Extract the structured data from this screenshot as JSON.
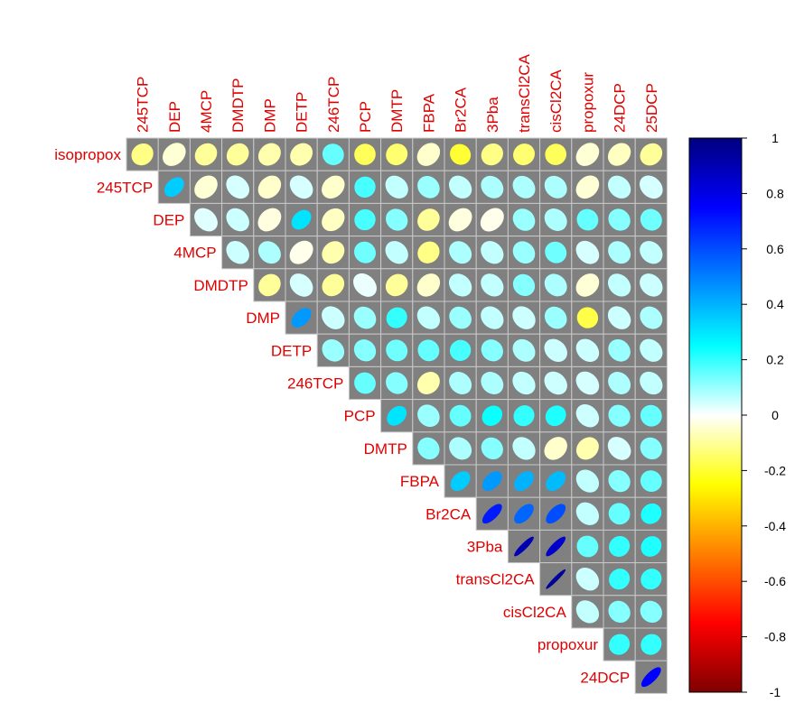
{
  "chart_data": {
    "type": "heatmap",
    "subtype": "correlation-matrix-upper",
    "shape": "ellipse",
    "background_color": "#808080",
    "row_variables": [
      "isopropox",
      "245TCP",
      "DEP",
      "4MCP",
      "DMDTP",
      "DMP",
      "DETP",
      "246TCP",
      "PCP",
      "DMTP",
      "FBPA",
      "Br2CA",
      "3Pba",
      "transCl2CA",
      "cisCl2CA",
      "propoxur",
      "24DCP"
    ],
    "column_variables": [
      "245TCP",
      "DEP",
      "4MCP",
      "DMDTP",
      "DMP",
      "DETP",
      "246TCP",
      "PCP",
      "DMTP",
      "FBPA",
      "Br2CA",
      "3Pba",
      "transCl2CA",
      "cisCl2CA",
      "propoxur",
      "24DCP",
      "25DCP"
    ],
    "values": [
      [
        -0.12,
        -0.04,
        -0.1,
        -0.1,
        -0.08,
        -0.08,
        0.15,
        -0.16,
        -0.14,
        -0.05,
        -0.2,
        -0.12,
        -0.14,
        -0.16,
        -0.04,
        -0.06,
        -0.1
      ],
      [
        0.35,
        -0.04,
        0.04,
        -0.05,
        0.04,
        -0.05,
        0.18,
        0.06,
        0.1,
        0.06,
        0.08,
        0.08,
        0.08,
        -0.04,
        0.06,
        0.04
      ],
      [
        0.03,
        0.05,
        -0.03,
        0.3,
        -0.06,
        0.18,
        0.12,
        -0.1,
        -0.03,
        -0.02,
        0.1,
        0.08,
        0.15,
        0.12,
        0.14
      ],
      [
        0.05,
        0.08,
        -0.02,
        -0.08,
        0.14,
        0.06,
        -0.12,
        0.08,
        0.06,
        0.1,
        0.14,
        0.04,
        0.08,
        0.06
      ],
      [
        -0.1,
        0.04,
        -0.1,
        0.02,
        -0.1,
        -0.05,
        0.06,
        0.06,
        0.12,
        0.08,
        -0.04,
        0.06,
        0.05
      ],
      [
        0.45,
        0.05,
        0.1,
        0.2,
        0.06,
        0.1,
        0.06,
        0.05,
        0.1,
        -0.18,
        0.05,
        0.08
      ],
      [
        0.1,
        0.12,
        0.14,
        0.15,
        0.18,
        0.12,
        0.08,
        0.05,
        0.05,
        0.1,
        0.06
      ],
      [
        0.15,
        0.12,
        -0.08,
        0.08,
        0.08,
        0.06,
        0.05,
        0.04,
        0.08,
        0.06
      ],
      [
        0.3,
        0.1,
        0.15,
        0.24,
        0.2,
        0.22,
        0.05,
        0.12,
        0.15
      ],
      [
        0.12,
        0.08,
        0.12,
        0.06,
        -0.05,
        -0.08,
        0.04,
        0.12
      ],
      [
        0.35,
        0.45,
        0.4,
        0.38,
        0.06,
        0.12,
        0.15
      ],
      [
        0.7,
        0.55,
        0.6,
        0.06,
        0.15,
        0.22
      ],
      [
        0.9,
        0.85,
        0.15,
        0.2,
        0.22
      ],
      [
        0.95,
        0.05,
        0.2,
        0.2
      ],
      [
        0.06,
        0.12,
        0.12
      ],
      [
        0.2,
        0.2
      ],
      [
        0.75
      ]
    ],
    "colorbar": {
      "range": [
        -1,
        1
      ],
      "ticks": [
        "1",
        "0.8",
        "0.6",
        "0.4",
        "0.2",
        "0",
        "-0.2",
        "-0.4",
        "-0.6",
        "-0.8",
        "-1"
      ],
      "colors": [
        "#7f0000",
        "#ff0000",
        "#ff7f00",
        "#ffff00",
        "#ffffff",
        "#00ffff",
        "#007fff",
        "#0000ff",
        "#00007f"
      ]
    },
    "label_color": "#e00000",
    "legend_position": "right"
  }
}
